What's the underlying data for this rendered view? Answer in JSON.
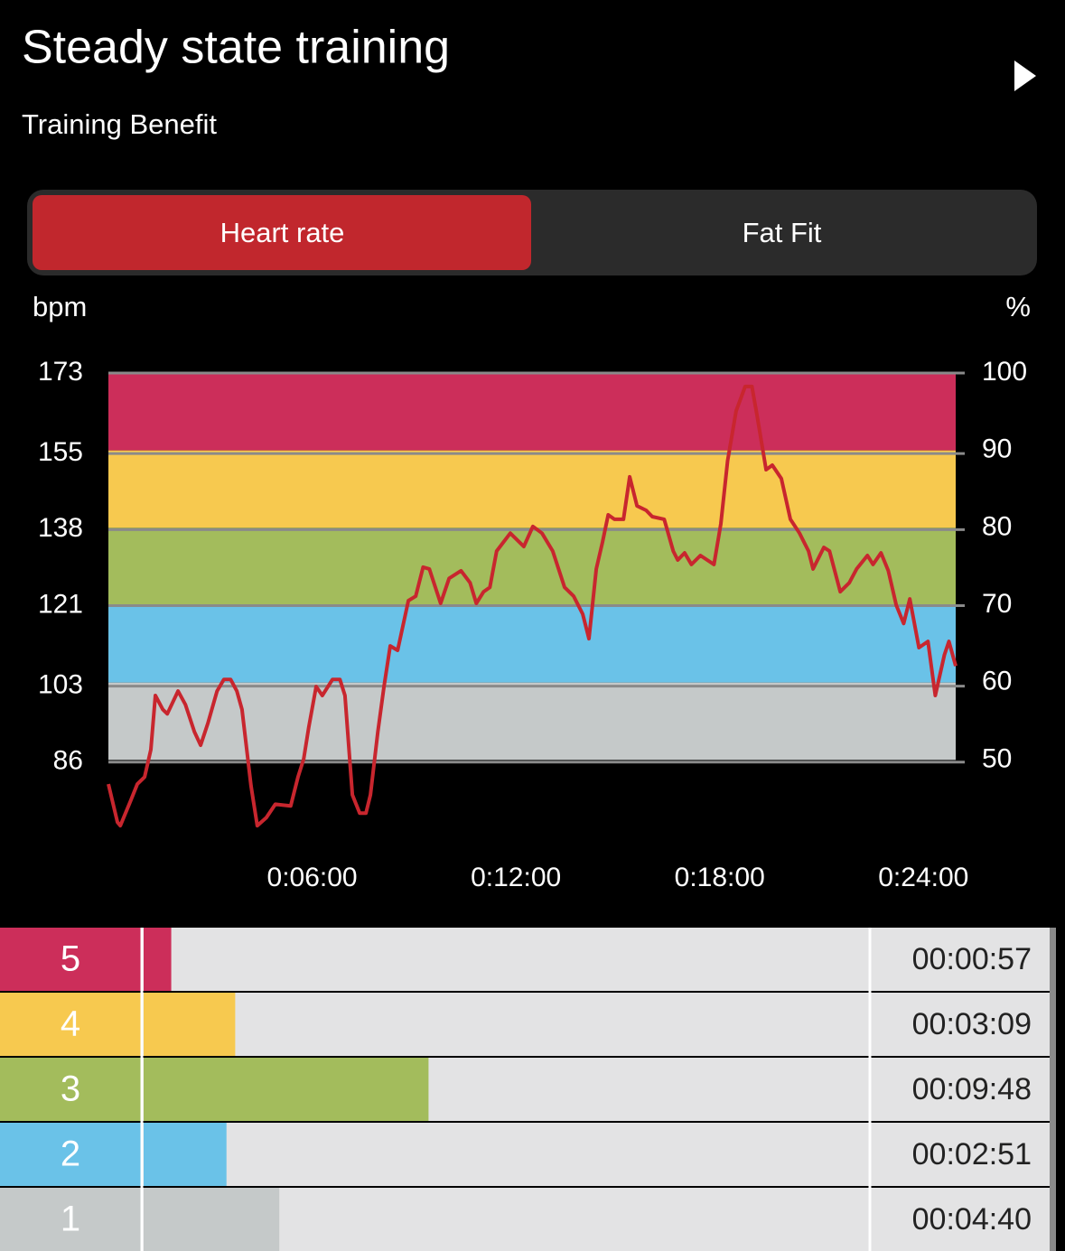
{
  "header": {
    "title": "Steady state training",
    "subtitle": "Training Benefit"
  },
  "tabs": [
    {
      "label": "Heart rate",
      "active": true
    },
    {
      "label": "Fat Fit",
      "active": false
    }
  ],
  "chart_data": [
    {
      "type": "line",
      "y_label": "bpm",
      "y2_label": "%",
      "color": "#c8262e",
      "x": [
        0,
        16,
        21,
        40,
        51,
        64,
        75,
        83,
        96,
        104,
        123,
        136,
        152,
        163,
        176,
        192,
        204,
        216,
        227,
        236,
        252,
        263,
        279,
        295,
        322,
        335,
        345,
        354,
        367,
        378,
        396,
        409,
        418,
        431,
        444,
        455,
        463,
        476,
        487,
        498,
        511,
        530,
        543,
        556,
        567,
        587,
        602,
        623,
        639,
        650,
        663,
        674,
        686,
        710,
        734,
        750,
        766,
        785,
        806,
        822,
        838,
        849,
        862,
        873,
        883,
        894,
        910,
        921,
        934,
        950,
        961,
        982,
        998,
        1006,
        1018,
        1030,
        1046,
        1070,
        1082,
        1094,
        1109,
        1125,
        1137,
        1146,
        1162,
        1173,
        1189,
        1205,
        1221,
        1237,
        1245,
        1264,
        1274,
        1293,
        1309,
        1322,
        1341,
        1351,
        1365,
        1378,
        1392,
        1405,
        1416,
        1432,
        1448,
        1461,
        1477,
        1485,
        1497
      ],
      "values": [
        81.1,
        72.6,
        71.8,
        77.6,
        81.1,
        82.7,
        88.8,
        100.9,
        97.8,
        96.8,
        101.9,
        98.9,
        92.8,
        89.8,
        94.8,
        101.9,
        104.5,
        104.5,
        101.9,
        97.8,
        80.7,
        71.8,
        73.6,
        76.6,
        76.2,
        82.7,
        86.7,
        93.8,
        102.9,
        100.9,
        104.5,
        104.5,
        100.9,
        78.7,
        74.6,
        74.6,
        78.7,
        92.8,
        102.9,
        112.0,
        111.0,
        122.1,
        123.1,
        129.6,
        129.2,
        121.5,
        127.1,
        128.8,
        126.1,
        121.5,
        124.1,
        125.1,
        133.2,
        137.2,
        134.2,
        138.7,
        137.2,
        133.2,
        125.1,
        123.1,
        119.1,
        113.6,
        129.2,
        135.2,
        141.3,
        140.3,
        140.3,
        149.8,
        143.3,
        142.3,
        140.9,
        140.3,
        133.2,
        131.2,
        132.8,
        130.2,
        132.2,
        130.2,
        139.3,
        153.4,
        164.5,
        170.0,
        170.0,
        163.5,
        151.4,
        152.4,
        149.4,
        140.3,
        137.2,
        133.2,
        129.2,
        134.0,
        133.2,
        124.1,
        126.1,
        129.2,
        132.2,
        130.2,
        132.8,
        128.8,
        121.1,
        117.0,
        122.5,
        111.6,
        113.0,
        100.9,
        110.0,
        113.0,
        107.5
      ],
      "xlim": [
        0,
        1497
      ],
      "xticks": [
        {
          "value": 360,
          "label": "0:06:00"
        },
        {
          "value": 720,
          "label": "0:12:00"
        },
        {
          "value": 1080,
          "label": "0:18:00"
        },
        {
          "value": 1440,
          "label": "0:24:00"
        }
      ],
      "ylim": [
        69.2,
        173
      ],
      "yticks": [
        173,
        155,
        138,
        121,
        103,
        86
      ],
      "y2lim": [
        40,
        100
      ],
      "y2ticks": [
        100,
        90,
        80,
        70,
        60,
        50
      ],
      "band_colors": [
        "#cc2e5a",
        "#f7c94f",
        "#a3bc5c",
        "#6ac2e8",
        "#c5c9c9"
      ],
      "grid": true
    },
    {
      "type": "bar",
      "orientation": "horizontal",
      "categories": [
        "5",
        "4",
        "3",
        "2",
        "1"
      ],
      "values": [
        57,
        189,
        588,
        171,
        280
      ],
      "value_labels": [
        "00:00:57",
        "00:03:09",
        "00:09:48",
        "00:02:51",
        "00:04:40"
      ],
      "colors": [
        "#cc2e5a",
        "#f7c94f",
        "#a3bc5c",
        "#6ac2e8",
        "#c5c9c9"
      ],
      "xlim": [
        0,
        1497
      ]
    }
  ]
}
